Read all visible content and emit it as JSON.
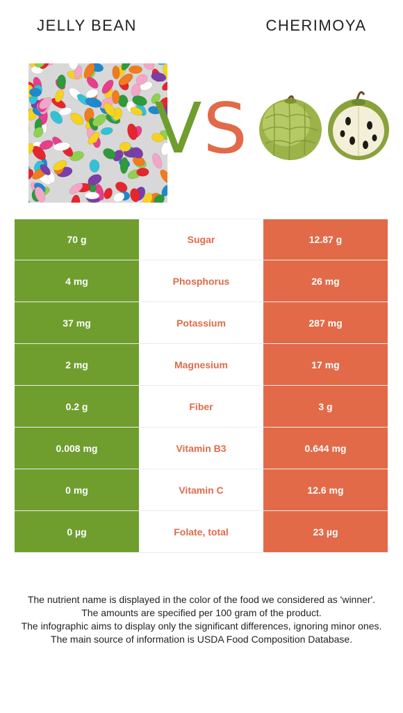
{
  "header": {
    "left_food": "JELLY BEAN",
    "right_food": "CHERIMOYA",
    "vs_v": "V",
    "vs_s": "S"
  },
  "colors": {
    "winner_left": "#6f9e2f",
    "winner_right": "#e26a48"
  },
  "nutrients": [
    {
      "left": "70 g",
      "name": "Sugar",
      "right": "12.87 g"
    },
    {
      "left": "4 mg",
      "name": "Phosphorus",
      "right": "26 mg"
    },
    {
      "left": "37 mg",
      "name": "Potassium",
      "right": "287 mg"
    },
    {
      "left": "2 mg",
      "name": "Magnesium",
      "right": "17 mg"
    },
    {
      "left": "0.2 g",
      "name": "Fiber",
      "right": "3 g"
    },
    {
      "left": "0.008 mg",
      "name": "Vitamin B3",
      "right": "0.644 mg"
    },
    {
      "left": "0 mg",
      "name": "Vitamin C",
      "right": "12.6 mg"
    },
    {
      "left": "0 µg",
      "name": "Folate, total",
      "right": "23 µg"
    }
  ],
  "footer": {
    "line1": "The nutrient name is displayed in the color of the food we considered as 'winner'.",
    "line2": "The amounts are specified per 100 gram of the product.",
    "line3": "The infographic aims to display only the significant differences, ignoring minor ones.",
    "line4": "The main source of information is USDA Food Composition Database."
  }
}
